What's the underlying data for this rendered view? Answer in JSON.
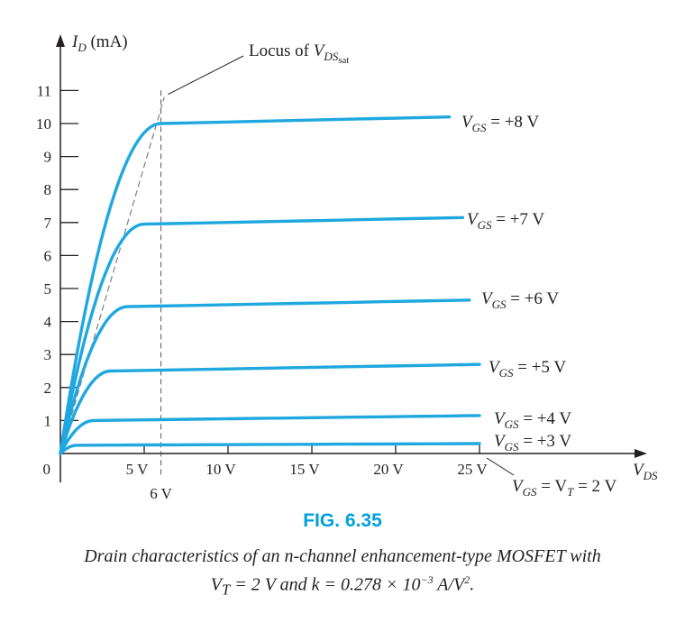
{
  "chart_data": {
    "type": "line",
    "title": "",
    "ylabel": "I_D (mA)",
    "ylabel_main": "I",
    "ylabel_sub": "D",
    "ylabel_unit": " (mA)",
    "xlabel_main": "V",
    "xlabel_sub": "DS",
    "xlim": [
      0,
      35
    ],
    "ylim": [
      0,
      11.5
    ],
    "y_ticks": [
      "0",
      "1",
      "2",
      "3",
      "4",
      "5",
      "6",
      "7",
      "8",
      "9",
      "10",
      "11"
    ],
    "x_ticks": [
      {
        "value": 5,
        "label": "5 V"
      },
      {
        "value": 10,
        "label": "10 V"
      },
      {
        "value": 15,
        "label": "15 V"
      },
      {
        "value": 20,
        "label": "20 V"
      },
      {
        "value": 25,
        "label": "25 V"
      }
    ],
    "marker_6v": {
      "value": 6,
      "label": "6 V"
    },
    "locus": {
      "label_main": "Locus of V",
      "label_sub": "DS",
      "label_subsub": "sat",
      "x": [
        0,
        6.2
      ],
      "y": [
        0,
        10.8
      ]
    },
    "series": [
      {
        "name_pre": "V",
        "name_sub": "GS",
        "name_post": " = +8 V",
        "vsat": 6,
        "isat": 10.0,
        "iend": 10.2,
        "xend": 23.2
      },
      {
        "name_pre": "V",
        "name_sub": "GS",
        "name_post": " = +7 V",
        "vsat": 5,
        "isat": 6.95,
        "iend": 7.15,
        "xend": 24.0
      },
      {
        "name_pre": "V",
        "name_sub": "GS",
        "name_post": " = +6 V",
        "vsat": 4,
        "isat": 4.45,
        "iend": 4.65,
        "xend": 24.4
      },
      {
        "name_pre": "V",
        "name_sub": "GS",
        "name_post": " = +5 V",
        "vsat": 3,
        "isat": 2.5,
        "iend": 2.7,
        "xend": 25.0
      },
      {
        "name_pre": "V",
        "name_sub": "GS",
        "name_post": " = +4 V",
        "vsat": 2,
        "isat": 1.0,
        "iend": 1.15,
        "xend": 25.0
      },
      {
        "name_pre": "V",
        "name_sub": "GS",
        "name_post": " = +3 V",
        "vsat": 1,
        "isat": 0.25,
        "iend": 0.3,
        "xend": 25.0
      }
    ],
    "threshold_label": {
      "pre": "V",
      "sub1": "GS",
      "mid": " = V",
      "sub2": "T",
      "post": " = 2 V"
    },
    "line_color": "#1fa8e0"
  },
  "figure": {
    "label": "FIG. 6.35",
    "caption_line1": "Drain characteristics of an n-channel enhancement-type MOSFET with",
    "caption_line2_a": "V",
    "caption_line2_sub": "T",
    "caption_line2_b": " = 2 V and k = 0.278 × 10",
    "caption_line2_sup": "−3",
    "caption_line2_c": " A/V",
    "caption_line2_sup2": "2",
    "caption_line2_d": "."
  }
}
